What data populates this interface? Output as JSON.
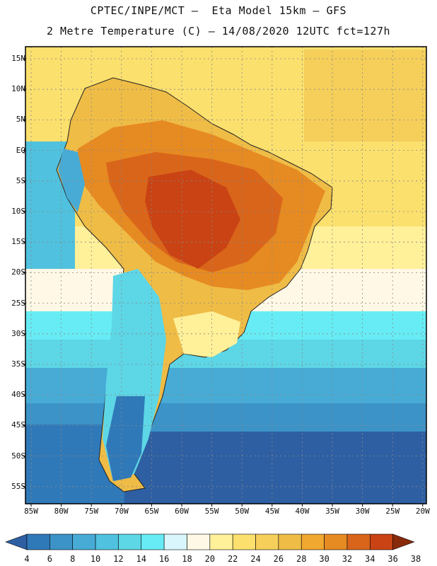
{
  "header": {
    "line1": "CPTEC/INPE/MCT –  Eta Model 15km – GFS",
    "line2": "2 Metre Temperature (C) – 14/08/2020 12UTC fct=127h"
  },
  "map": {
    "lat_labels": [
      "15N",
      "10N",
      "5N",
      "EQ",
      "5S",
      "10S",
      "15S",
      "20S",
      "25S",
      "30S",
      "35S",
      "40S",
      "45S",
      "50S",
      "55S"
    ],
    "lon_labels": [
      "85W",
      "80W",
      "75W",
      "70W",
      "65W",
      "60W",
      "55W",
      "50W",
      "45W",
      "40W",
      "35W",
      "30W",
      "25W",
      "20W"
    ]
  },
  "colorbar": {
    "labels": [
      "4",
      "6",
      "8",
      "10",
      "12",
      "14",
      "16",
      "18",
      "20",
      "22",
      "24",
      "26",
      "28",
      "30",
      "32",
      "34",
      "36",
      "38"
    ],
    "colors": [
      "#2e5fa3",
      "#3079b8",
      "#3b93c8",
      "#47abd6",
      "#50c1de",
      "#5dd6e6",
      "#67ecf5",
      "#d8f6fb",
      "#fff8e6",
      "#fff09a",
      "#fbe06e",
      "#f5cf5a",
      "#efbc46",
      "#f0a830",
      "#e68a22",
      "#d9651a",
      "#c94314",
      "#8a2a0c"
    ]
  }
}
